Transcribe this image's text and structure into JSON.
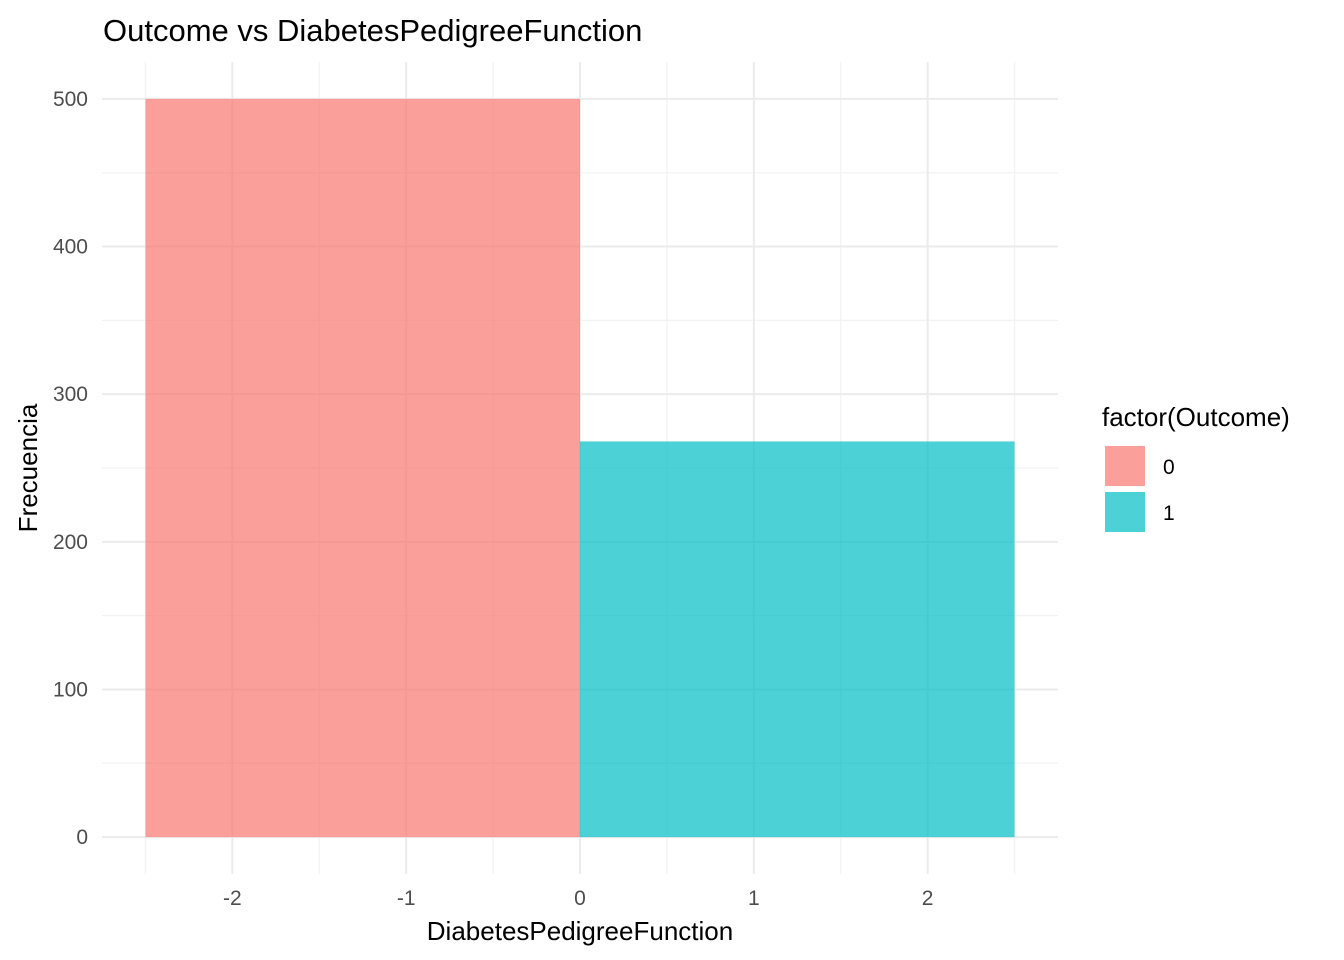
{
  "chart_data": {
    "type": "bar",
    "title": "Outcome vs DiabetesPedigreeFunction",
    "xlabel": "DiabetesPedigreeFunction",
    "ylabel": "Frecuencia",
    "xlim": [
      -2.75,
      2.75
    ],
    "ylim": [
      -25,
      525
    ],
    "x_ticks": [
      -2,
      -1,
      0,
      1,
      2
    ],
    "x_tick_labels": [
      "-2",
      "-1",
      "0",
      "1",
      "2"
    ],
    "y_ticks": [
      0,
      100,
      200,
      300,
      400,
      500
    ],
    "y_tick_labels": [
      "0",
      "100",
      "200",
      "300",
      "400",
      "500"
    ],
    "grid": true,
    "bars": [
      {
        "x_start": -2.5,
        "x_end": 0,
        "value": 500,
        "group": "0",
        "color": "#F8766D"
      },
      {
        "x_start": 0,
        "x_end": 2.5,
        "value": 268,
        "group": "1",
        "color": "#00BFC4"
      }
    ],
    "legend": {
      "title": "factor(Outcome)",
      "position": "right",
      "items": [
        {
          "label": "0",
          "color": "#F8766D"
        },
        {
          "label": "1",
          "color": "#00BFC4"
        }
      ]
    }
  }
}
